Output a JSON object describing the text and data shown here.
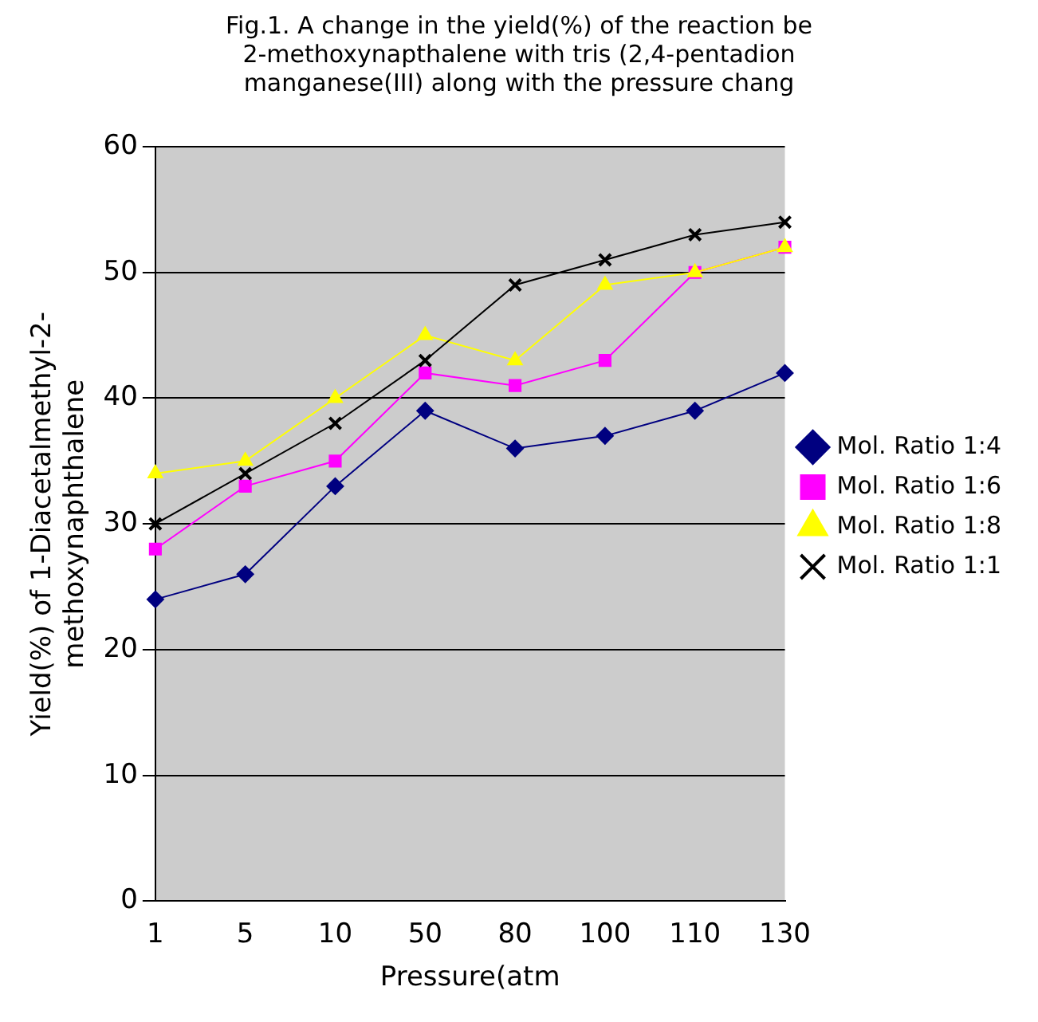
{
  "chart_data": {
    "type": "line",
    "title": "Fig.1. A change in the yield(%) of the reaction be\n2-methoxynapthalene with tris (2,4-pentadion\nmanganese(III) along with the pressure chang",
    "xlabel": "Pressure(atm",
    "ylabel": "Yield(%) of 1-Diacetalmethyl-2-\nmethoxynaphthalene",
    "categories": [
      "1",
      "5",
      "10",
      "50",
      "80",
      "100",
      "110",
      "130"
    ],
    "ylim": [
      0,
      60
    ],
    "yticks": [
      0,
      10,
      20,
      30,
      40,
      50,
      60
    ],
    "grid": "y",
    "legend": "right",
    "series": [
      {
        "name": "Mol. Ratio 1:4",
        "color": "#000080",
        "marker": "diamond",
        "values": [
          24,
          26,
          33,
          39,
          36,
          37,
          39,
          42
        ]
      },
      {
        "name": "Mol. Ratio 1:6",
        "color": "#ff00ff",
        "marker": "square",
        "values": [
          28,
          33,
          35,
          42,
          41,
          43,
          50,
          52
        ]
      },
      {
        "name": "Mol. Ratio 1:8",
        "color": "#ffff00",
        "marker": "triangle",
        "values": [
          34,
          35,
          40,
          45,
          43,
          49,
          50,
          52
        ]
      },
      {
        "name": "Mol. Ratio 1:1",
        "color": "#000000",
        "marker": "cross",
        "values": [
          30,
          34,
          38,
          43,
          49,
          51,
          53,
          54
        ]
      }
    ]
  }
}
